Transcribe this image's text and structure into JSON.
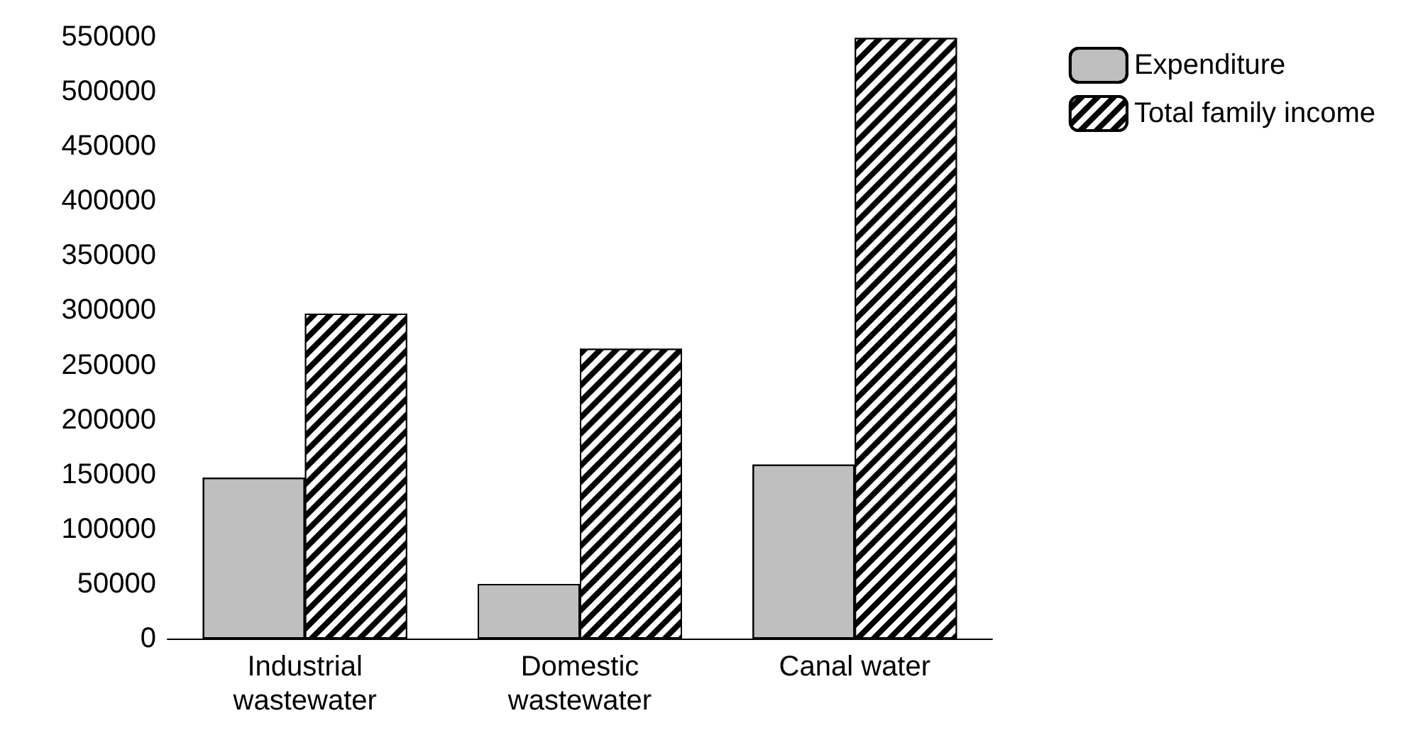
{
  "chart_data": {
    "type": "bar",
    "categories": [
      "Industrial\nwastewater",
      "Domestic\nwastewater",
      "Canal water"
    ],
    "series": [
      {
        "name": "Expenditure",
        "color": "#bfbfbf",
        "values": [
          147000,
          50000,
          159000
        ]
      },
      {
        "name": "Total family income",
        "color": "#000000",
        "values": [
          297000,
          265000,
          549000
        ]
      }
    ],
    "ylim": [
      0,
      550000
    ],
    "yticks": [
      0,
      50000,
      100000,
      150000,
      200000,
      250000,
      300000,
      350000,
      400000,
      450000,
      500000,
      550000
    ],
    "grid": false,
    "legend": "top right"
  }
}
